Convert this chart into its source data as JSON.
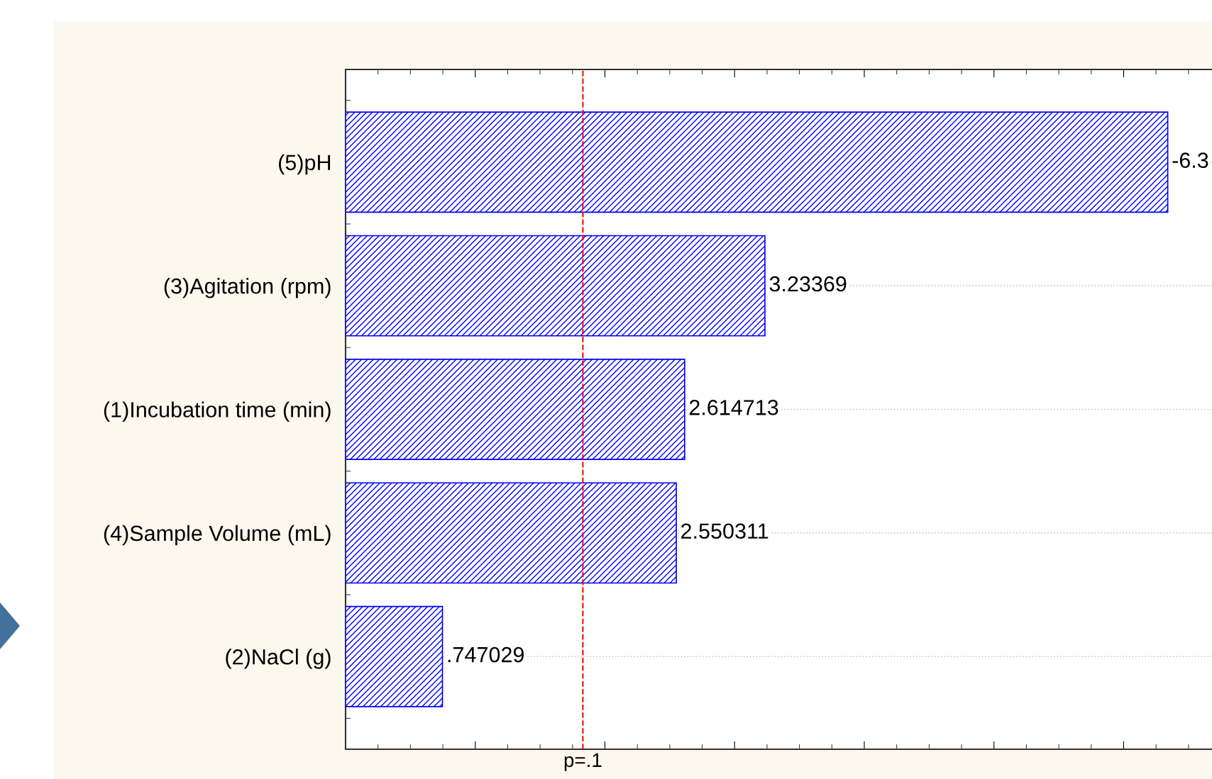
{
  "chart_data": {
    "type": "bar",
    "orientation": "horizontal",
    "categories": [
      "(5)pH",
      "(3)Agitation (rpm)",
      "(1)Incubation time (min)",
      "(4)Sample Volume (mL)",
      "(2)NaCl (g)"
    ],
    "values": [
      6.34,
      3.23369,
      2.614713,
      2.550311,
      0.747029
    ],
    "annotations": [
      {
        "text": "-6.3",
        "x": 6.34,
        "y": "(5)pH"
      }
    ],
    "value_labels": [
      null,
      "3.23369",
      "2.614713",
      "2.550311",
      ".747029"
    ],
    "color": "#0000ff",
    "xlim": [
      0,
      6.7
    ],
    "xticks": [
      {
        "value": 0,
        "label": null
      },
      {
        "value": 1,
        "label": null
      },
      {
        "value": 2,
        "label": null
      },
      {
        "value": 3,
        "label": null
      },
      {
        "value": 4,
        "label": null
      },
      {
        "value": 5,
        "label": null
      },
      {
        "value": 6,
        "label": null
      }
    ],
    "tick_labels": "y",
    "grid": "y",
    "ref_lines": [
      {
        "axis": "x",
        "value": 1.83,
        "label": "p=.1",
        "color": "#ff0000",
        "line_style": "dashed"
      }
    ]
  }
}
